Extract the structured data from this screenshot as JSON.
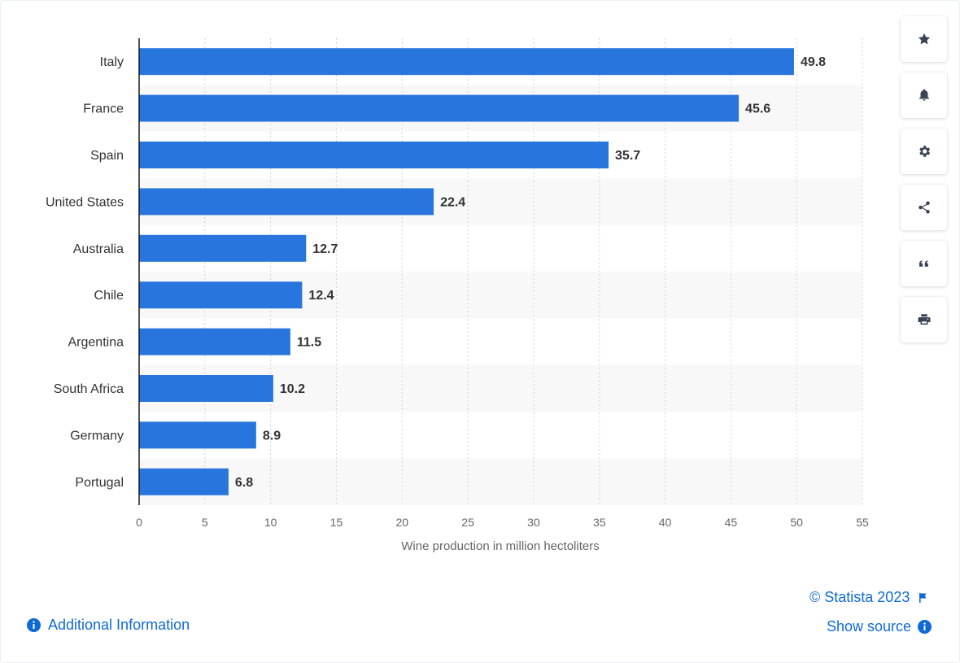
{
  "chart_data": {
    "type": "bar",
    "orientation": "horizontal",
    "categories": [
      "Italy",
      "France",
      "Spain",
      "United States",
      "Australia",
      "Chile",
      "Argentina",
      "South Africa",
      "Germany",
      "Portugal"
    ],
    "values": [
      49.8,
      45.6,
      35.7,
      22.4,
      12.7,
      12.4,
      11.5,
      10.2,
      8.9,
      6.8
    ],
    "value_labels": [
      "49.8",
      "45.6",
      "35.7",
      "22.4",
      "12.7",
      "12.4",
      "11.5",
      "10.2",
      "8.9",
      "6.8"
    ],
    "xlabel": "Wine production in million hectoliters",
    "xlim": [
      0,
      55
    ],
    "xticks": [
      0,
      5,
      10,
      15,
      20,
      25,
      30,
      35,
      40,
      45,
      50,
      55
    ],
    "grid": "vertical dotted",
    "bar_color": "#2876dd",
    "alt_row_color": "#f8f8f8"
  },
  "sidebar": {
    "buttons": [
      {
        "icon": "star-icon"
      },
      {
        "icon": "bell-icon"
      },
      {
        "icon": "gear-icon"
      },
      {
        "icon": "share-icon"
      },
      {
        "icon": "quote-icon"
      },
      {
        "icon": "print-icon"
      }
    ]
  },
  "footer": {
    "copyright": "© Statista 2023",
    "show_source": "Show source",
    "additional_info": "Additional Information",
    "link_color": "#0f6ad6"
  }
}
